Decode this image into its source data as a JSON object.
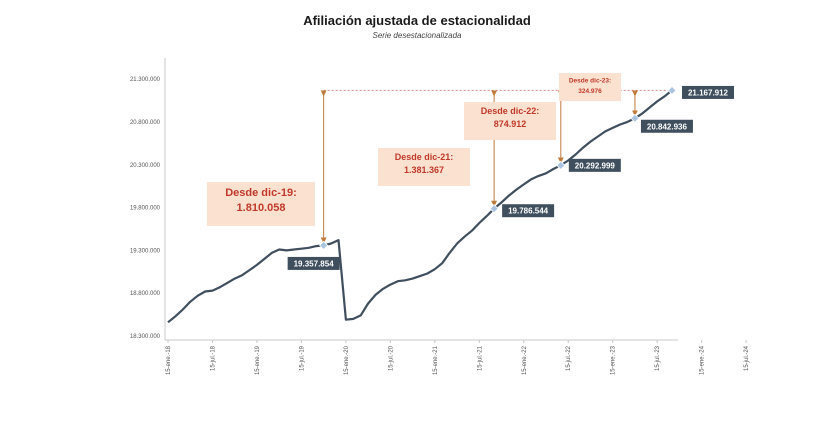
{
  "chart_data": {
    "type": "line",
    "title": "Afiliación ajustada de estacionalidad",
    "subtitle": "Serie desestacionalizada",
    "xlabel": "",
    "ylabel": "",
    "ylim": [
      18300000,
      21500000
    ],
    "y_ticks": [
      18300000,
      18800000,
      19300000,
      19800000,
      20300000,
      20800000,
      21300000
    ],
    "y_tick_labels": [
      "18.300.000",
      "18.800.000",
      "19.300.000",
      "19.800.000",
      "20.300.000",
      "20.800.000",
      "21.300.000"
    ],
    "x_ticks": [
      0,
      6,
      12,
      18,
      24,
      30,
      36,
      42,
      48,
      54,
      60,
      66,
      72,
      78
    ],
    "x_tick_labels": [
      "15-ene.-18",
      "15-jul.-18",
      "15-ene.-19",
      "15-jul.-19",
      "15-ene.-20",
      "15-jul.-20",
      "15-ene.-21",
      "15-jul.-21",
      "15-ene.-22",
      "15-jul.-22",
      "15-ene.-23",
      "15-jul.-23",
      "15-ene.-24",
      "15-jul.-24"
    ],
    "grid": false,
    "line_color": "#3f4f5e",
    "series": [
      {
        "values": [
          18460000,
          18530000,
          18610000,
          18700000,
          18770000,
          18820000,
          18830000,
          18870000,
          18920000,
          18970000,
          19010000,
          19070000,
          19130000,
          19200000,
          19270000,
          19310000,
          19300000,
          19310000,
          19320000,
          19330000,
          19350000,
          19357854,
          19380000,
          19420000,
          18490000,
          18500000,
          18540000,
          18680000,
          18780000,
          18850000,
          18900000,
          18940000,
          18950000,
          18970000,
          19000000,
          19030000,
          19080000,
          19150000,
          19270000,
          19380000,
          19460000,
          19530000,
          19620000,
          19700000,
          19786544,
          19860000,
          19940000,
          20010000,
          20070000,
          20130000,
          20170000,
          20200000,
          20250000,
          20292999,
          20350000,
          20420000,
          20500000,
          20570000,
          20630000,
          20690000,
          20730000,
          20770000,
          20800000,
          20842936,
          20900000,
          20970000,
          21040000,
          21100000,
          21167912
        ]
      }
    ],
    "highlight_points": [
      {
        "x": 21,
        "value": 19357854,
        "label": "19.357.854"
      },
      {
        "x": 44,
        "value": 19786544,
        "label": "19.786.544"
      },
      {
        "x": 53,
        "value": 20292999,
        "label": "20.292.999"
      },
      {
        "x": 63,
        "value": 20842936,
        "label": "20.842.936"
      },
      {
        "x": 68,
        "value": 21167912,
        "label": "21.167.912"
      }
    ],
    "annotations": [
      {
        "from_x": 21,
        "from_value": 19357854,
        "line1": "Desde dic-19:",
        "line2": "1.810.058",
        "size": "large"
      },
      {
        "from_x": 44,
        "from_value": 19786544,
        "line1": "Desde dic-21:",
        "line2": "1.381.367",
        "size": "medium"
      },
      {
        "from_x": 53,
        "from_value": 20292999,
        "line1": "Desde dic-22:",
        "line2": "874.912",
        "size": "medium"
      },
      {
        "from_x": 63,
        "from_value": 20842936,
        "line1": "Desde dic-23:",
        "line2": "324.976",
        "size": "small"
      }
    ],
    "reference_value": 21167912
  }
}
